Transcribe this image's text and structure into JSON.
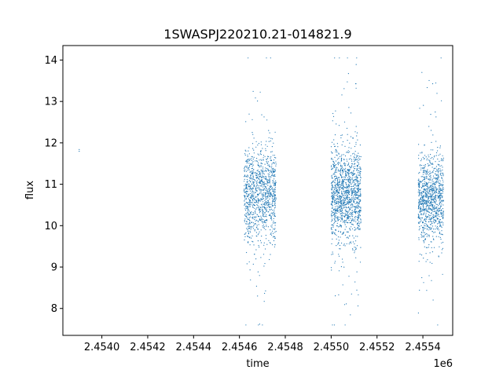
{
  "chart_data": {
    "type": "scatter",
    "title": "1SWASPJ220210.21-014821.9",
    "xlabel": "time",
    "ylabel": "flux",
    "x_offset_label": "1e6",
    "xlim": [
      2453830,
      2455530
    ],
    "ylim": [
      7.35,
      14.35
    ],
    "x_ticks": [
      2.454,
      2.4542,
      2.4544,
      2.4546,
      2.4548,
      2.455,
      2.4552,
      2.4554
    ],
    "x_tick_labels": [
      "2.4540",
      "2.4542",
      "2.4544",
      "2.4546",
      "2.4548",
      "2.4550",
      "2.4552",
      "2.4554"
    ],
    "y_ticks": [
      8,
      9,
      10,
      11,
      12,
      13,
      14
    ],
    "y_tick_labels": [
      "8",
      "9",
      "10",
      "11",
      "12",
      "13",
      "14"
    ],
    "grid": false,
    "point_color": "#1f77b4",
    "series": [
      {
        "clusters": [
          {
            "x_range": [
              2453900,
              2453902
            ],
            "y_center": 11.7,
            "y_spread": 0.1,
            "count": 2
          },
          {
            "x_range": [
              2454620,
              2454760
            ],
            "y_center": 10.75,
            "y_spread": 0.55,
            "count": 1100
          },
          {
            "x_range": [
              2455000,
              2455130
            ],
            "y_center": 10.75,
            "y_spread": 0.55,
            "count": 1300
          },
          {
            "x_range": [
              2455380,
              2455490
            ],
            "y_center": 10.65,
            "y_spread": 0.5,
            "count": 1000
          }
        ]
      }
    ]
  }
}
